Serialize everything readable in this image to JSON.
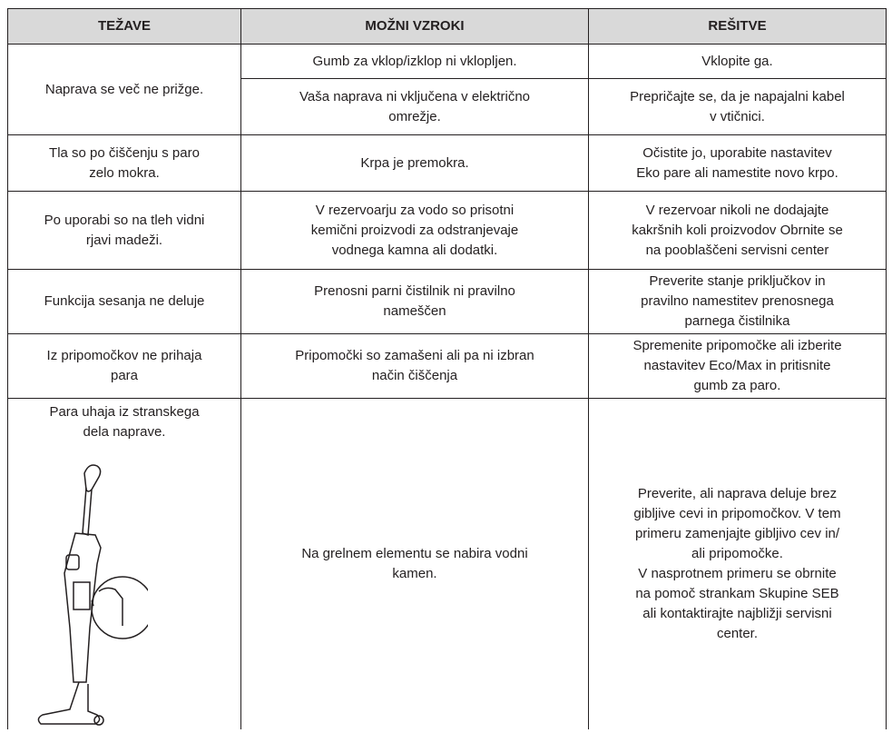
{
  "table": {
    "header": [
      "TEŽAVE",
      "MOŽNI VZROKI",
      "REŠITVE"
    ],
    "rows": [
      {
        "problem": [
          "Naprava se več ne prižge."
        ],
        "causes": [
          {
            "cause": [
              "Gumb za vklop/izklop ni vklopljen."
            ],
            "solution": [
              "Vklopite ga."
            ]
          },
          {
            "cause": [
              "Vaša naprava ni vključena v električno",
              "omrežje."
            ],
            "solution": [
              "Prepričajte se, da je napajalni kabel",
              "v vtičnici."
            ]
          }
        ]
      },
      {
        "problem": [
          "Tla so po čiščenju s paro",
          "zelo mokra."
        ],
        "causes": [
          {
            "cause": [
              "Krpa je premokra."
            ],
            "solution": [
              "Očistite jo, uporabite nastavitev",
              "Eko pare ali namestite novo krpo."
            ]
          }
        ]
      },
      {
        "problem": [
          "Po uporabi so na tleh vidni",
          "rjavi madeži."
        ],
        "causes": [
          {
            "cause": [
              "V rezervoarju za vodo so prisotni",
              "kemični proizvodi za odstranjevaje",
              "vodnega kamna ali dodatki."
            ],
            "solution": [
              "V rezervoar nikoli ne dodajajte",
              "kakršnih koli proizvodov Obrnite se",
              "na pooblaščeni servisni center"
            ]
          }
        ]
      },
      {
        "problem": [
          "Funkcija sesanja ne deluje"
        ],
        "causes": [
          {
            "cause": [
              "Prenosni parni čistilnik ni pravilno",
              "nameščen"
            ],
            "solution": [
              "Preverite stanje priključkov in",
              "pravilno namestitev prenosnega",
              "parnega čistilnika"
            ]
          }
        ]
      },
      {
        "problem": [
          "Iz pripomočkov ne prihaja",
          "para"
        ],
        "causes": [
          {
            "cause": [
              "Pripomočki so zamašeni ali pa ni izbran",
              "način čiščenja"
            ],
            "solution": [
              "Spremenite pripomočke ali izberite",
              "nastavitev Eco/Max in pritisnite",
              "gumb za paro."
            ]
          }
        ]
      },
      {
        "problem": [
          "Para uhaja iz stranskega",
          "dela naprave."
        ],
        "causes": [
          {
            "cause": [
              "Na grelnem elementu se nabira vodni",
              "kamen."
            ],
            "solution": [
              "Preverite, ali naprava deluje brez",
              "gibljive cevi in pripomočkov. V tem",
              "primeru zamenjajte gibljivo cev in/",
              "ali pripomočke.",
              "V nasprotnem primeru se obrnite",
              "na pomoč strankam Skupine SEB",
              "ali kontaktirajte najbližji servisni",
              "center."
            ]
          }
        ]
      }
    ]
  }
}
